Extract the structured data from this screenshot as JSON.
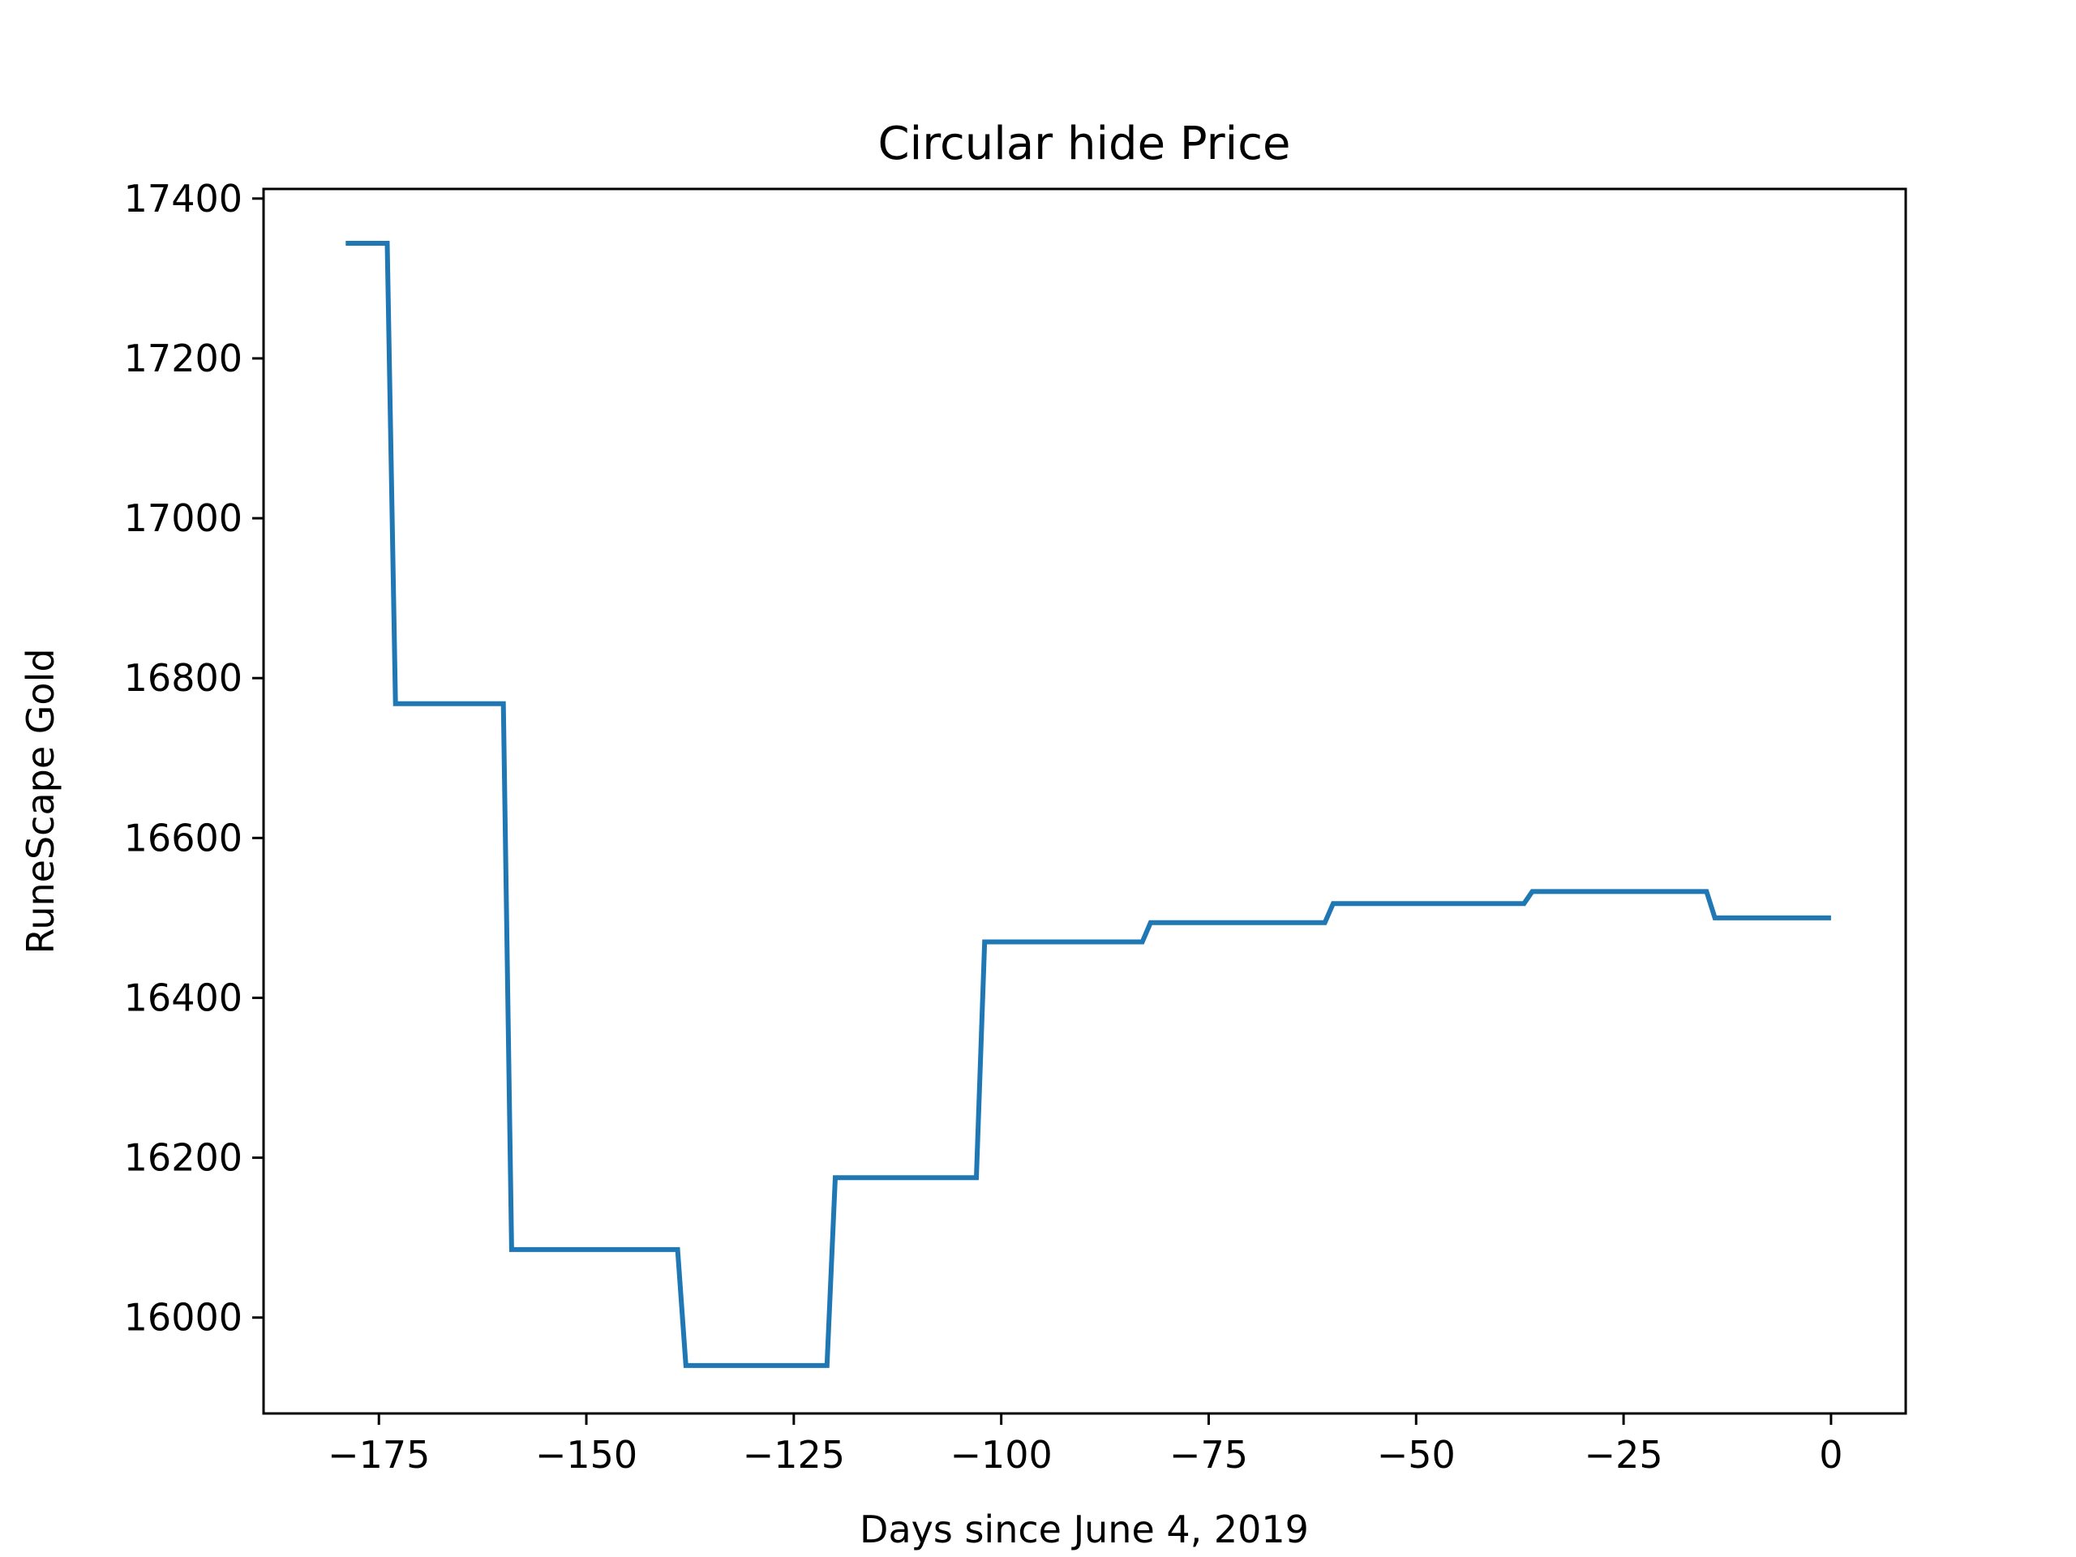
{
  "chart_data": {
    "type": "line",
    "title": "Circular hide Price",
    "xlabel": "Days since June 4, 2019",
    "ylabel": "RuneScape Gold",
    "xlim": [
      -188.9,
      9.0
    ],
    "ylim": [
      15880,
      17412
    ],
    "xticks": [
      -175,
      -150,
      -125,
      -100,
      -75,
      -50,
      -25,
      0
    ],
    "xtick_labels": [
      "−175",
      "−150",
      "−125",
      "−100",
      "−75",
      "−50",
      "−25",
      "0"
    ],
    "yticks": [
      16000,
      16200,
      16400,
      16600,
      16800,
      17000,
      17200,
      17400
    ],
    "ytick_labels": [
      "16000",
      "16200",
      "16400",
      "16600",
      "16800",
      "17000",
      "17200",
      "17400"
    ],
    "grid": false,
    "series": [
      {
        "color": "#1f77b4",
        "x": [
          -179,
          -174,
          -173,
          -160,
          -159,
          -139,
          -138,
          -121,
          -120,
          -103,
          -102,
          -83,
          -82,
          -61,
          -60,
          -37,
          -36,
          -15,
          -14,
          0
        ],
        "y": [
          17344,
          17344,
          16768,
          16768,
          16085,
          16085,
          15940,
          15940,
          16175,
          16175,
          16470,
          16470,
          16494,
          16494,
          16518,
          16518,
          16533,
          16533,
          16500,
          16500
        ]
      }
    ]
  }
}
